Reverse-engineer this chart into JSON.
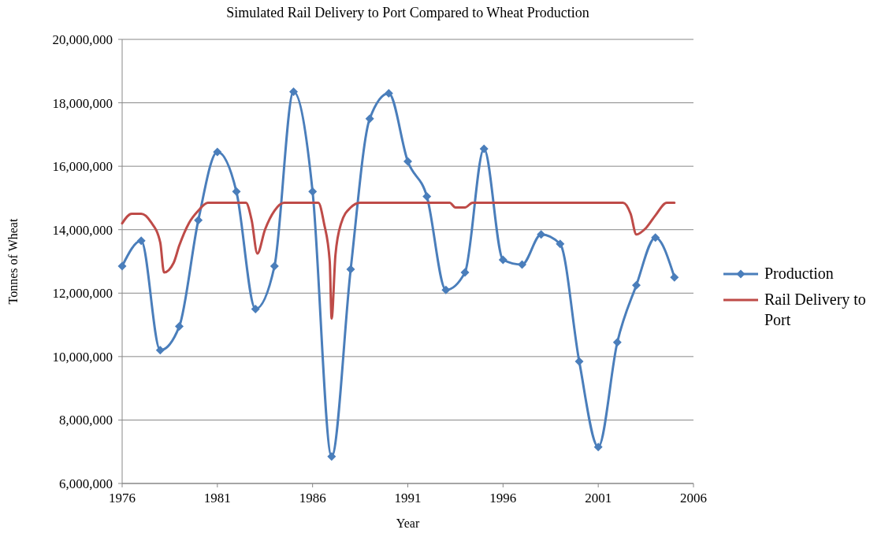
{
  "chart_data": {
    "type": "line",
    "title": "Simulated Rail Delivery to Port Compared to Wheat Production",
    "xlabel": "Year",
    "ylabel": "Tonnes of Wheat",
    "xlim": [
      1976,
      2006
    ],
    "xticks": [
      1976,
      1981,
      1986,
      1991,
      1996,
      2001,
      2006
    ],
    "ylim": [
      6000000,
      20000000
    ],
    "yticks": [
      {
        "value": 6000000,
        "label": "6,000,000"
      },
      {
        "value": 8000000,
        "label": "8,000,000"
      },
      {
        "value": 10000000,
        "label": "10,000,000"
      },
      {
        "value": 12000000,
        "label": "12,000,000"
      },
      {
        "value": 14000000,
        "label": "14,000,000"
      },
      {
        "value": 16000000,
        "label": "16,000,000"
      },
      {
        "value": 18000000,
        "label": "18,000,000"
      },
      {
        "value": 20000000,
        "label": "20,000,000"
      }
    ],
    "grid": "y",
    "legend": "right",
    "series": [
      {
        "name": "Production",
        "color": "#4a7ebb",
        "marker": "diamond",
        "x": [
          1976,
          1977,
          1978,
          1979,
          1980,
          1981,
          1982,
          1983,
          1984,
          1985,
          1986,
          1987,
          1988,
          1989,
          1990,
          1991,
          1992,
          1993,
          1994,
          1995,
          1996,
          1997,
          1998,
          1999,
          2000,
          2001,
          2002,
          2003,
          2004,
          2005
        ],
        "values": [
          12850000,
          13650000,
          10200000,
          10950000,
          14300000,
          16450000,
          15200000,
          11500000,
          12850000,
          18350000,
          15200000,
          6850000,
          12750000,
          17500000,
          18300000,
          16150000,
          15050000,
          12100000,
          12650000,
          16550000,
          13050000,
          12900000,
          13850000,
          13550000,
          9850000,
          7150000,
          10450000,
          12250000,
          13750000,
          12500000
        ]
      },
      {
        "name": "Rail Delivery to Port",
        "color": "#be4b48",
        "marker": "none",
        "x": [
          1976,
          1976.5,
          1977,
          1977.5,
          1978,
          1978.2,
          1978.7,
          1979,
          1979.5,
          1980,
          1980.5,
          1982.5,
          1982.8,
          1983.1,
          1983.5,
          1984,
          1984.5,
          1986.3,
          1986.6,
          1986.9,
          1987,
          1987.2,
          1987.5,
          1988,
          1988.5,
          1993.2,
          1993.5,
          1994,
          1994.4,
          2002.3,
          2002.7,
          2003,
          2003.5,
          2004,
          2004.6,
          2005
        ],
        "values": [
          14200000,
          14500000,
          14500000,
          14250000,
          13600000,
          12650000,
          12950000,
          13500000,
          14200000,
          14600000,
          14850000,
          14850000,
          14300000,
          13250000,
          14000000,
          14600000,
          14850000,
          14850000,
          14200000,
          13000000,
          11200000,
          13200000,
          14200000,
          14700000,
          14850000,
          14850000,
          14700000,
          14700000,
          14850000,
          14850000,
          14500000,
          13850000,
          14050000,
          14450000,
          14850000,
          14850000
        ]
      }
    ]
  }
}
